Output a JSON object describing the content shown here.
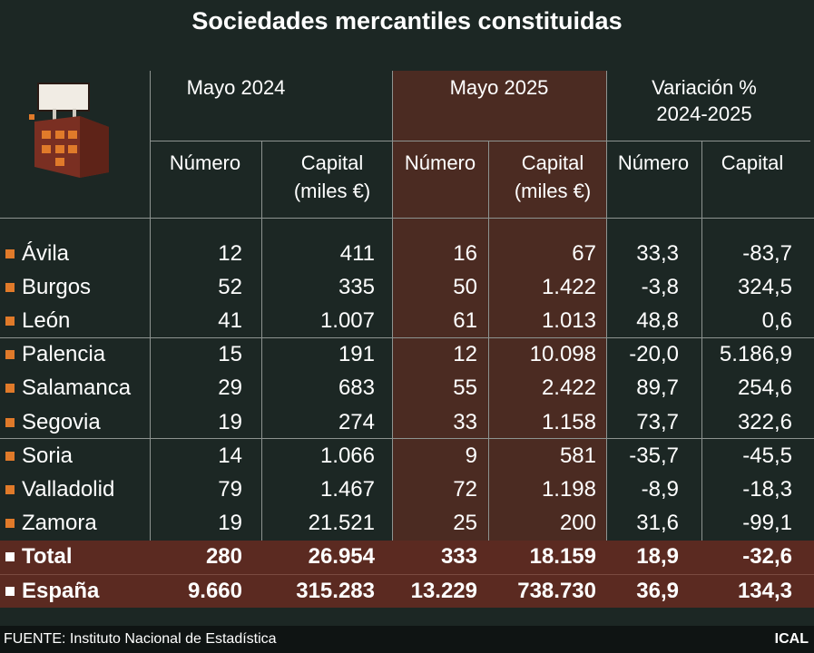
{
  "title": "Sociedades mercantiles constituidas",
  "header": {
    "groups": [
      [
        "Mayo 2024"
      ],
      [
        "Mayo 2025"
      ],
      [
        "Variación %",
        "2024-2025"
      ]
    ],
    "columns": [
      [
        "Número"
      ],
      [
        "Capital",
        "(miles €)"
      ],
      [
        "Número"
      ],
      [
        "Capital",
        "(miles €)"
      ],
      [
        "Número"
      ],
      [
        "Capital"
      ]
    ]
  },
  "rows": [
    {
      "name": "Ávila",
      "values": [
        "12",
        "411",
        "16",
        "67",
        "33,3",
        "-83,7"
      ]
    },
    {
      "name": "Burgos",
      "values": [
        "52",
        "335",
        "50",
        "1.422",
        "-3,8",
        "324,5"
      ]
    },
    {
      "name": "León",
      "values": [
        "41",
        "1.007",
        "61",
        "1.013",
        "48,8",
        "0,6"
      ]
    },
    {
      "name": "Palencia",
      "values": [
        "15",
        "191",
        "12",
        "10.098",
        "-20,0",
        "5.186,9"
      ]
    },
    {
      "name": "Salamanca",
      "values": [
        "29",
        "683",
        "55",
        "2.422",
        "89,7",
        "254,6"
      ]
    },
    {
      "name": "Segovia",
      "values": [
        "19",
        "274",
        "33",
        "1.158",
        "73,7",
        "322,6"
      ]
    },
    {
      "name": "Soria",
      "values": [
        "14",
        "1.066",
        "9",
        "581",
        "-35,7",
        "-45,5"
      ]
    },
    {
      "name": "Valladolid",
      "values": [
        "79",
        "1.467",
        "72",
        "1.198",
        "-8,9",
        "-18,3"
      ]
    },
    {
      "name": "Zamora",
      "values": [
        "19",
        "21.521",
        "25",
        "200",
        "31,6",
        "-99,1"
      ]
    }
  ],
  "totals": [
    {
      "name": "Total",
      "values": [
        "280",
        "26.954",
        "333",
        "18.159",
        "18,9",
        "-32,6"
      ]
    },
    {
      "name": "España",
      "values": [
        "9.660",
        "315.283",
        "13.229",
        "738.730",
        "36,9",
        "134,3"
      ]
    }
  ],
  "source": "FUENTE: Instituto Nacional de Estadística",
  "brand": "ICAL"
}
